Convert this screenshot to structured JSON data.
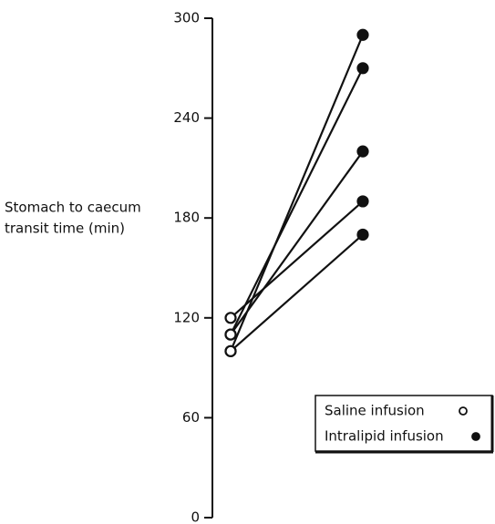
{
  "chart_data": {
    "type": "line",
    "ylabel": [
      "Stomach to caecum",
      "transit time  (min)"
    ],
    "categories": [
      "Saline infusion",
      "Intralipid infusion"
    ],
    "series": [
      {
        "color": "#111111",
        "values": [
          120,
          190
        ]
      },
      {
        "color": "#111111",
        "values": [
          110,
          270
        ]
      },
      {
        "color": "#111111",
        "values": [
          110,
          220
        ]
      },
      {
        "color": "#111111",
        "values": [
          100,
          290
        ]
      },
      {
        "color": "#111111",
        "values": [
          100,
          170
        ]
      }
    ],
    "ylim": [
      0,
      300
    ],
    "yticks": [
      0,
      60,
      120,
      180,
      240,
      300
    ]
  }
}
